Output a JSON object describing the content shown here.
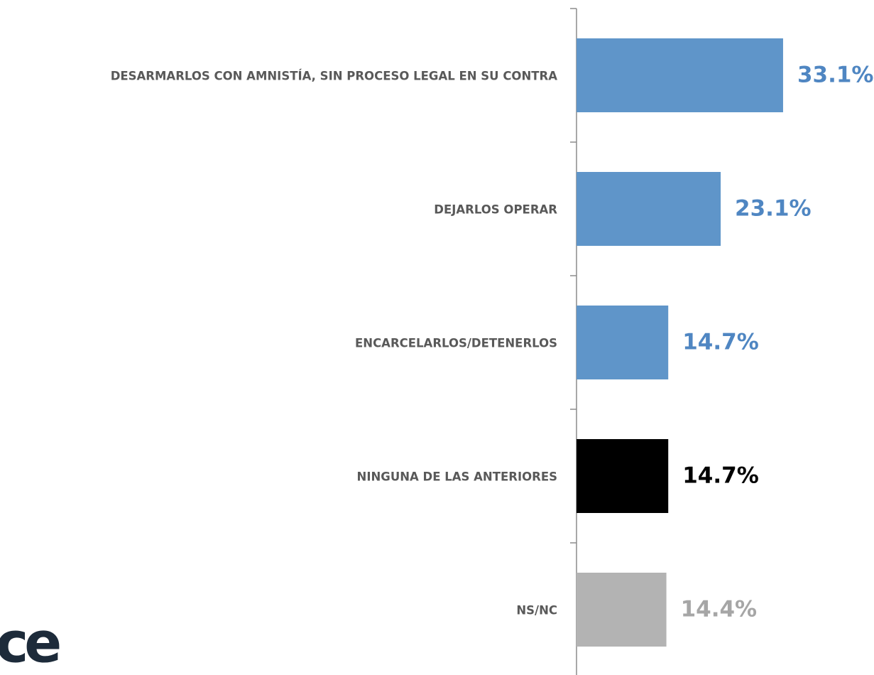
{
  "logo": "ce",
  "chart_data": {
    "type": "bar",
    "orientation": "horizontal",
    "categories": [
      "DESARMARLOS CON AMNISTÍA, SIN PROCESO LEGAL EN SU CONTRA",
      "DEJARLOS OPERAR",
      "ENCARCELARLOS/DETENERLOS",
      "NINGUNA DE LAS ANTERIORES",
      "NS/NC"
    ],
    "values": [
      33.1,
      23.1,
      14.7,
      14.7,
      14.4
    ],
    "value_labels": [
      "33.1%",
      "23.1%",
      "14.7%",
      "14.7%",
      "14.4%"
    ],
    "colors": [
      "#5f95c9",
      "#5f95c9",
      "#5f95c9",
      "#000000",
      "#b3b3b3"
    ],
    "label_colors": [
      "#4f86c2",
      "#4f86c2",
      "#4f86c2",
      "#000000",
      "#a6a6a6"
    ]
  }
}
